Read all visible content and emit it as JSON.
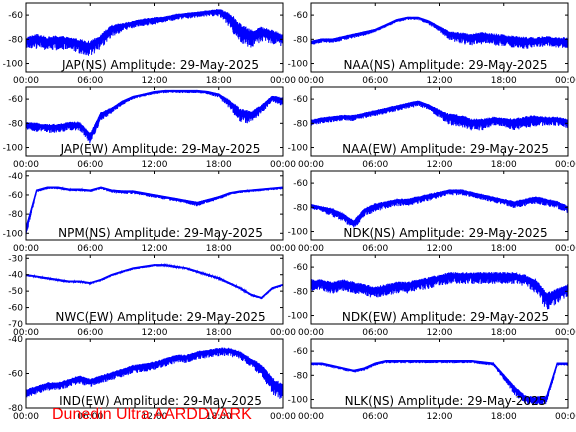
{
  "footer": "Dunedin Ultra AARDDVARK",
  "colors": {
    "trace": "#0000ff",
    "axes": "#000000",
    "footer": "#ff0000"
  },
  "chart_data": [
    {
      "type": "line",
      "title": "JAP(NS) Amplitude: 29-May-2025",
      "xticks": [
        "00:00",
        "06:00",
        "12:00",
        "18:00",
        "00:00"
      ],
      "xlim": [
        0,
        24
      ],
      "yticks": [
        -60,
        -80,
        -100
      ],
      "ylim": [
        -107,
        -50
      ],
      "grid": false,
      "x": [
        0,
        1,
        2,
        3,
        4,
        5,
        6,
        7,
        8,
        9,
        10,
        11,
        12,
        13,
        14,
        15,
        16,
        17,
        18,
        19,
        20,
        21,
        22,
        23,
        24
      ],
      "y": [
        -80,
        -78,
        -80,
        -79,
        -80,
        -82,
        -84,
        -78,
        -70,
        -68,
        -66,
        -64,
        -63,
        -62,
        -60,
        -59,
        -58,
        -57,
        -56,
        -60,
        -70,
        -75,
        -72,
        -74,
        -78
      ],
      "noise": [
        8,
        10,
        9,
        10,
        8,
        10,
        10,
        10,
        8,
        6,
        5,
        5,
        5,
        4,
        4,
        4,
        4,
        4,
        5,
        10,
        14,
        12,
        10,
        10,
        8
      ]
    },
    {
      "type": "line",
      "title": "NAA(NS) Amplitude: 29-May-2025",
      "xticks": [
        "00:00",
        "06:00",
        "12:00",
        "18:00",
        "00:00"
      ],
      "xlim": [
        0,
        24
      ],
      "yticks": [
        -60,
        -80,
        -100
      ],
      "ylim": [
        -107,
        -50
      ],
      "grid": false,
      "x": [
        0,
        1,
        2,
        3,
        4,
        5,
        6,
        7,
        8,
        9,
        10,
        11,
        12,
        13,
        14,
        15,
        16,
        17,
        18,
        19,
        20,
        21,
        22,
        23,
        24
      ],
      "y": [
        -82,
        -80,
        -80,
        -78,
        -76,
        -74,
        -72,
        -68,
        -64,
        -62,
        -62,
        -65,
        -70,
        -75,
        -76,
        -77,
        -76,
        -77,
        -78,
        -79,
        -80,
        -80,
        -79,
        -80,
        -80
      ],
      "noise": [
        3,
        3,
        3,
        3,
        3,
        3,
        2,
        2,
        2,
        2,
        2,
        3,
        4,
        6,
        8,
        8,
        8,
        8,
        8,
        8,
        8,
        7,
        7,
        7,
        7
      ]
    },
    {
      "type": "line",
      "title": "JAP(EW) Amplitude: 29-May-2025",
      "xticks": [
        "00:00",
        "06:00",
        "12:00",
        "18:00",
        "00:00"
      ],
      "xlim": [
        0,
        24
      ],
      "yticks": [
        -60,
        -80,
        -100
      ],
      "ylim": [
        -107,
        -50
      ],
      "grid": false,
      "x": [
        0,
        1,
        2,
        3,
        4,
        5,
        6,
        7,
        8,
        9,
        10,
        11,
        12,
        13,
        14,
        15,
        16,
        17,
        18,
        19,
        20,
        21,
        22,
        23,
        24
      ],
      "y": [
        -80,
        -81,
        -82,
        -82,
        -80,
        -80,
        -90,
        -72,
        -68,
        -62,
        -58,
        -56,
        -54,
        -53,
        -53,
        -53,
        -53,
        -54,
        -56,
        -62,
        -70,
        -72,
        -66,
        -58,
        -60
      ],
      "noise": [
        5,
        6,
        6,
        6,
        6,
        6,
        8,
        6,
        4,
        3,
        2,
        2,
        2,
        2,
        2,
        2,
        2,
        2,
        3,
        6,
        10,
        8,
        6,
        4,
        6
      ]
    },
    {
      "type": "line",
      "title": "NAA(EW) Amplitude: 29-May-2025",
      "xticks": [
        "00:00",
        "06:00",
        "12:00",
        "18:00",
        "00:00"
      ],
      "xlim": [
        0,
        24
      ],
      "yticks": [
        -60,
        -80,
        -100
      ],
      "ylim": [
        -107,
        -50
      ],
      "grid": false,
      "x": [
        0,
        1,
        2,
        3,
        4,
        5,
        6,
        7,
        8,
        9,
        10,
        11,
        12,
        13,
        14,
        15,
        16,
        17,
        18,
        19,
        20,
        21,
        22,
        23,
        24
      ],
      "y": [
        -78,
        -76,
        -75,
        -74,
        -74,
        -72,
        -70,
        -68,
        -66,
        -64,
        -62,
        -65,
        -70,
        -74,
        -75,
        -78,
        -78,
        -76,
        -77,
        -78,
        -76,
        -75,
        -76,
        -76,
        -78
      ],
      "noise": [
        4,
        4,
        4,
        4,
        4,
        4,
        4,
        4,
        4,
        4,
        4,
        4,
        6,
        8,
        8,
        8,
        8,
        6,
        6,
        8,
        8,
        8,
        6,
        6,
        6
      ]
    },
    {
      "type": "line",
      "title": "NPM(NS) Amplitude: 29-May-2025",
      "xticks": [
        "00:00",
        "06:00",
        "12:00",
        "18:00",
        "00:00"
      ],
      "xlim": [
        0,
        24
      ],
      "yticks": [
        -40,
        -60,
        -80,
        -100
      ],
      "ylim": [
        -107,
        -35
      ],
      "grid": false,
      "x": [
        0,
        1,
        2,
        3,
        4,
        5,
        6,
        7,
        8,
        9,
        10,
        11,
        12,
        13,
        14,
        15,
        16,
        17,
        18,
        19,
        20,
        21,
        22,
        23,
        24
      ],
      "y": [
        -95,
        -55,
        -52,
        -52,
        -54,
        -54,
        -55,
        -52,
        -55,
        -56,
        -56,
        -58,
        -60,
        -62,
        -64,
        -66,
        -68,
        -65,
        -62,
        -58,
        -56,
        -55,
        -54,
        -53,
        -52
      ],
      "noise": [
        10,
        2,
        2,
        2,
        2,
        2,
        2,
        2,
        3,
        3,
        3,
        3,
        3,
        3,
        3,
        3,
        4,
        3,
        3,
        2,
        2,
        2,
        2,
        2,
        2
      ]
    },
    {
      "type": "line",
      "title": "NDK(NS) Amplitude: 29-May-2025",
      "xticks": [
        "00:00",
        "06:00",
        "12:00",
        "18:00",
        "00:00"
      ],
      "xlim": [
        0,
        24
      ],
      "yticks": [
        -60,
        -80,
        -100
      ],
      "ylim": [
        -107,
        -50
      ],
      "grid": false,
      "x": [
        0,
        1,
        2,
        3,
        4,
        5,
        6,
        7,
        8,
        9,
        10,
        11,
        12,
        13,
        14,
        15,
        16,
        17,
        18,
        19,
        20,
        21,
        22,
        23,
        24
      ],
      "y": [
        -78,
        -80,
        -82,
        -86,
        -92,
        -82,
        -78,
        -76,
        -74,
        -74,
        -72,
        -70,
        -68,
        -66,
        -66,
        -68,
        -70,
        -72,
        -74,
        -76,
        -74,
        -72,
        -74,
        -76,
        -80
      ],
      "noise": [
        3,
        4,
        6,
        6,
        6,
        6,
        6,
        5,
        5,
        5,
        5,
        5,
        4,
        4,
        4,
        4,
        4,
        4,
        4,
        5,
        5,
        5,
        5,
        5,
        5
      ]
    },
    {
      "type": "line",
      "title": "NWC(EW) Amplitude: 29-May-2025",
      "xticks": [
        "00:00",
        "06:00",
        "12:00",
        "18:00",
        "00:00"
      ],
      "xlim": [
        0,
        24
      ],
      "yticks": [
        -30,
        -40,
        -50,
        -60,
        -70
      ],
      "ylim": [
        -70,
        -28
      ],
      "grid": false,
      "x": [
        0,
        1,
        2,
        3,
        4,
        5,
        6,
        7,
        8,
        9,
        10,
        11,
        12,
        13,
        14,
        15,
        16,
        17,
        18,
        19,
        20,
        21,
        22,
        23,
        24
      ],
      "y": [
        -40,
        -41,
        -42,
        -43,
        -44,
        -44,
        -45,
        -43,
        -40,
        -38,
        -36,
        -35,
        -34,
        -34,
        -35,
        -36,
        -38,
        -40,
        -42,
        -45,
        -48,
        -52,
        -54,
        -48,
        -46
      ],
      "noise": [
        1,
        1,
        1,
        1,
        1,
        1,
        1,
        1,
        1,
        1,
        1,
        1,
        1,
        1,
        1,
        1,
        1,
        1,
        1,
        1,
        1,
        1,
        1,
        1,
        1
      ]
    },
    {
      "type": "line",
      "title": "NDK(EW) Amplitude: 29-May-2025",
      "xticks": [
        "00:00",
        "06:00",
        "12:00",
        "18:00",
        "00:00"
      ],
      "xlim": [
        0,
        24
      ],
      "yticks": [
        -60,
        -80,
        -100
      ],
      "ylim": [
        -107,
        -50
      ],
      "grid": false,
      "x": [
        0,
        1,
        2,
        3,
        4,
        5,
        6,
        7,
        8,
        9,
        10,
        11,
        12,
        13,
        14,
        15,
        16,
        17,
        18,
        19,
        20,
        21,
        22,
        23,
        24
      ],
      "y": [
        -72,
        -72,
        -74,
        -72,
        -74,
        -76,
        -78,
        -76,
        -74,
        -74,
        -72,
        -70,
        -68,
        -66,
        -66,
        -66,
        -66,
        -66,
        -66,
        -66,
        -68,
        -72,
        -84,
        -80,
        -76
      ],
      "noise": [
        8,
        8,
        8,
        8,
        8,
        8,
        8,
        8,
        8,
        8,
        8,
        8,
        8,
        8,
        8,
        8,
        8,
        8,
        8,
        8,
        8,
        10,
        12,
        10,
        8
      ]
    },
    {
      "type": "line",
      "title": "IND(EW) Amplitude: 29-May-2025",
      "xticks": [
        "00:00",
        "06:00",
        "12:00",
        "18:00",
        "00:00"
      ],
      "xlim": [
        0,
        24
      ],
      "yticks": [
        -40,
        -60,
        -80
      ],
      "ylim": [
        -80,
        -40
      ],
      "grid": false,
      "x": [
        0,
        1,
        2,
        3,
        4,
        5,
        6,
        7,
        8,
        9,
        10,
        11,
        12,
        13,
        14,
        15,
        16,
        17,
        18,
        19,
        20,
        21,
        22,
        23,
        24
      ],
      "y": [
        -70,
        -68,
        -66,
        -66,
        -64,
        -62,
        -64,
        -62,
        -60,
        -58,
        -56,
        -55,
        -54,
        -52,
        -50,
        -50,
        -48,
        -47,
        -46,
        -46,
        -48,
        -52,
        -56,
        -64,
        -68
      ],
      "noise": [
        4,
        4,
        4,
        4,
        4,
        4,
        4,
        4,
        4,
        4,
        4,
        4,
        4,
        4,
        4,
        4,
        4,
        4,
        4,
        4,
        4,
        4,
        6,
        8,
        8
      ]
    },
    {
      "type": "line",
      "title": "NLK(NS) Amplitude: 29-May-2025",
      "xticks": [
        "00:00",
        "06:00",
        "12:00",
        "18:00",
        "00:00"
      ],
      "xlim": [
        0,
        24
      ],
      "yticks": [
        -60,
        -80,
        -100
      ],
      "ylim": [
        -107,
        -50
      ],
      "grid": false,
      "x": [
        0,
        1,
        2,
        3,
        4,
        5,
        6,
        7,
        8,
        9,
        10,
        11,
        12,
        13,
        14,
        15,
        16,
        17,
        18,
        19,
        20,
        21,
        22,
        23,
        24
      ],
      "y": [
        -70,
        -70,
        -72,
        -74,
        -76,
        -74,
        -70,
        -68,
        -68,
        -68,
        -68,
        -68,
        -68,
        -68,
        -68,
        -68,
        -69,
        -70,
        -80,
        -90,
        -98,
        -99,
        -98,
        -70,
        -70
      ],
      "noise": [
        2,
        2,
        2,
        2,
        2,
        2,
        2,
        2,
        2,
        2,
        2,
        2,
        2,
        2,
        2,
        2,
        2,
        2,
        4,
        6,
        6,
        6,
        6,
        2,
        2
      ]
    }
  ]
}
